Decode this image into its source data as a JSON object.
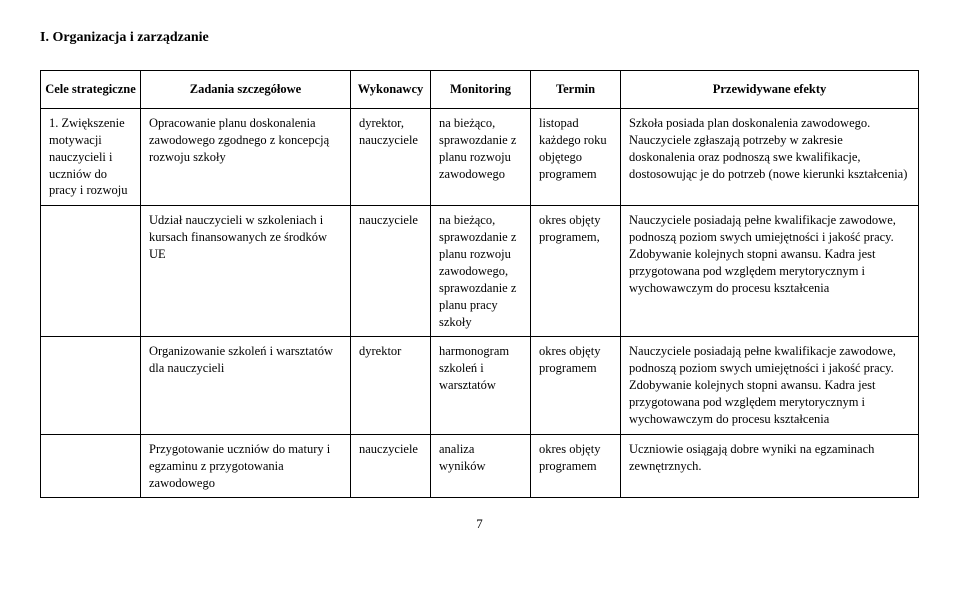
{
  "section_title": "I.     Organizacja i zarządzanie",
  "headers": {
    "col1": "Cele strategiczne",
    "col2": "Zadania szczegółowe",
    "col3": "Wykonawcy",
    "col4": "Monitoring",
    "col5": "Termin",
    "col6": "Przewidywane efekty"
  },
  "rows": [
    {
      "cele": "1.   Zwiększenie motywacji nauczycieli i uczniów do pracy i rozwoju",
      "zadania": "Opracowanie planu doskonalenia zawodowego zgodnego z koncepcją rozwoju szkoły",
      "wykonawcy": "dyrektor, nauczyciele",
      "monitoring": "na bieżąco, sprawozdanie z planu rozwoju zawodowego",
      "termin": "listopad każdego roku objętego programem",
      "efekty": "Szkoła posiada plan doskonalenia zawodowego. Nauczyciele zgłaszają potrzeby w zakresie doskonalenia oraz podnoszą swe kwalifikacje, dostosowując je do potrzeb (nowe kierunki kształcenia)"
    },
    {
      "cele": "",
      "zadania": "Udział nauczycieli w szkoleniach i kursach finansowanych ze środków UE",
      "wykonawcy": "nauczyciele",
      "monitoring": "na bieżąco, sprawozdanie z planu rozwoju zawodowego, sprawozdanie z planu pracy szkoły",
      "termin": "okres objęty programem,",
      "efekty": "Nauczyciele posiadają pełne kwalifikacje zawodowe, podnoszą poziom swych umiejętności i jakość pracy. Zdobywanie kolejnych stopni awansu.\n  Kadra jest przygotowana pod względem merytorycznym i wychowawczym do procesu kształcenia"
    },
    {
      "cele": "",
      "zadania": "Organizowanie szkoleń i warsztatów dla nauczycieli",
      "wykonawcy": "dyrektor",
      "monitoring": "harmonogram szkoleń i warsztatów",
      "termin": "okres objęty programem",
      "efekty": "Nauczyciele posiadają pełne kwalifikacje zawodowe, podnoszą poziom swych umiejętności i jakość pracy. Zdobywanie kolejnych stopni awansu.\nKadra jest przygotowana pod względem merytorycznym i wychowawczym do procesu kształcenia"
    },
    {
      "cele": "",
      "zadania": "Przygotowanie uczniów do matury i egzaminu z przygotowania zawodowego",
      "wykonawcy": "nauczyciele",
      "monitoring": "analiza wyników",
      "termin": "okres objęty programem",
      "efekty": "Uczniowie osiągają dobre wyniki na egzaminach zewnętrznych."
    }
  ],
  "page_number": "7"
}
